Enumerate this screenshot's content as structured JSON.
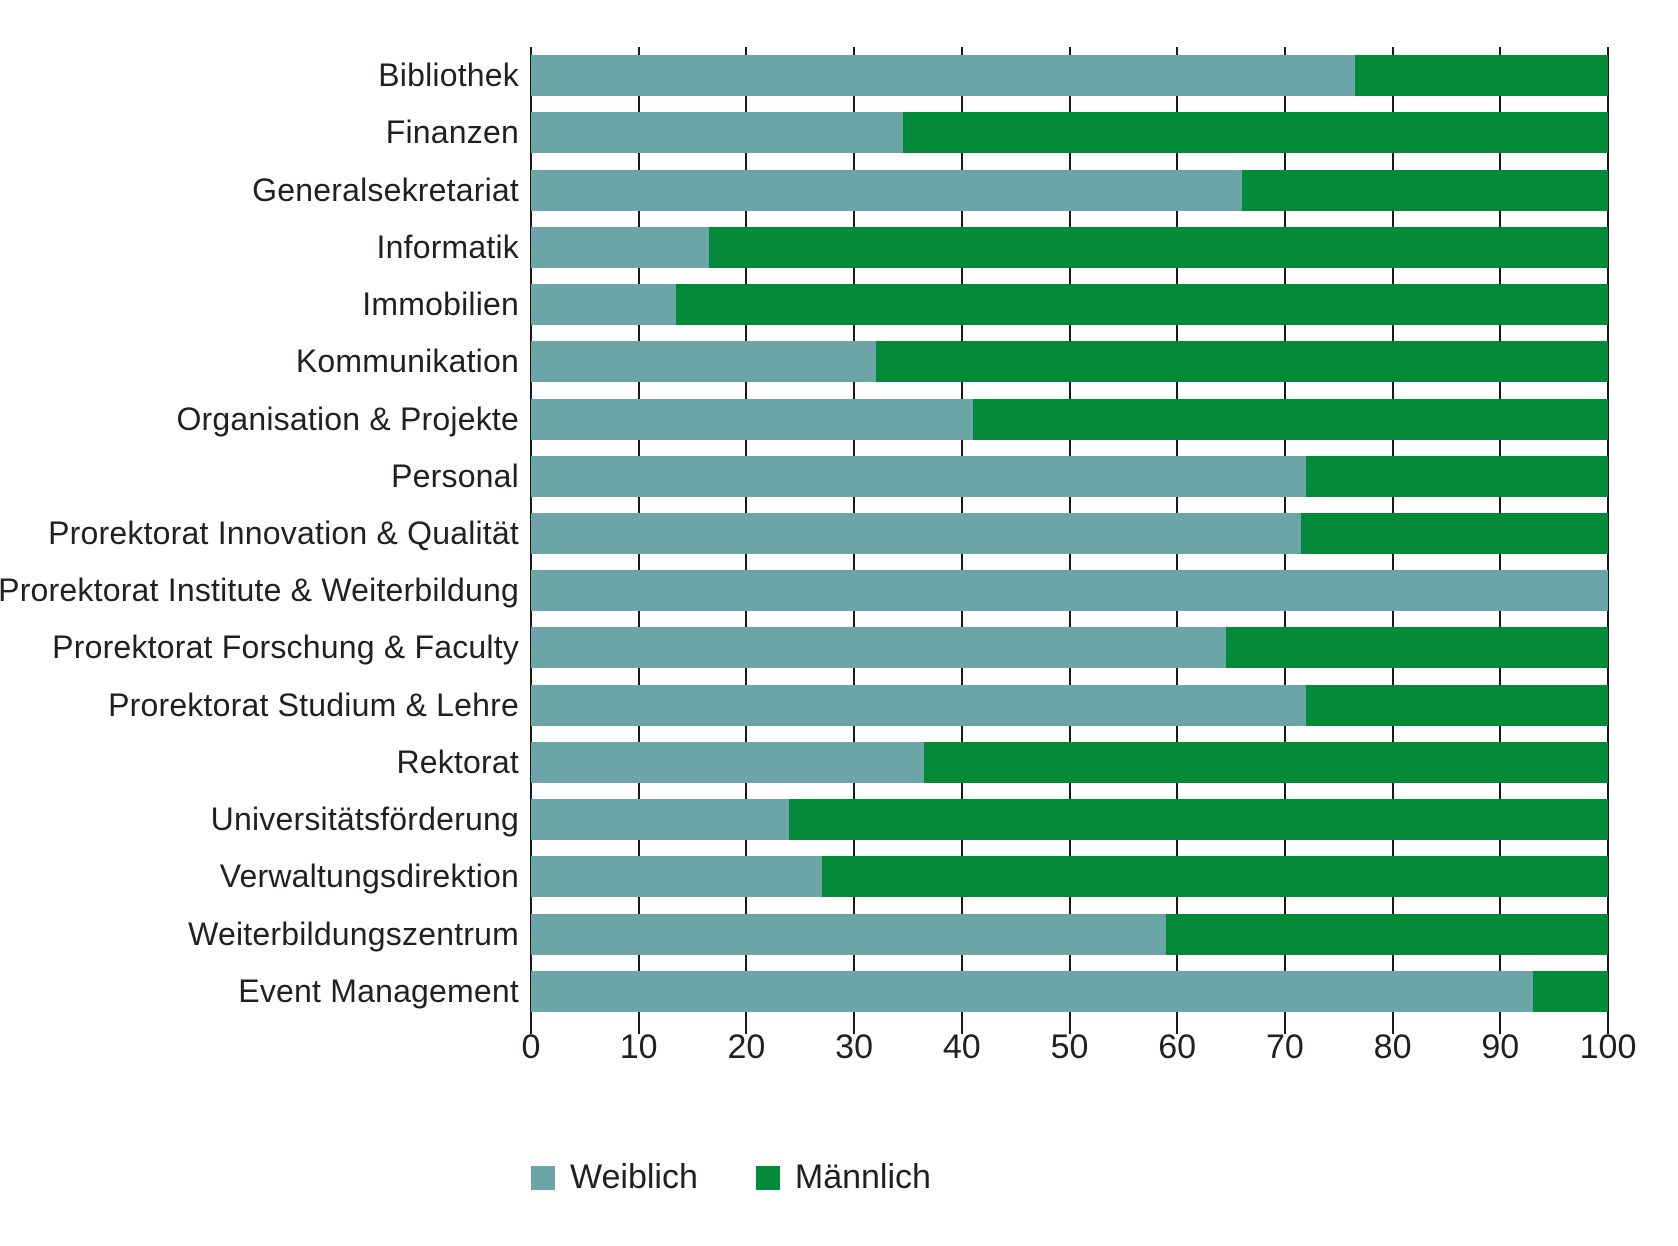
{
  "chart_data": {
    "type": "bar",
    "orientation": "horizontal",
    "stacked": true,
    "unit": "percent",
    "title": "",
    "xlabel": "",
    "ylabel": "",
    "xlim": [
      0,
      100
    ],
    "x_ticks": [
      0,
      10,
      20,
      30,
      40,
      50,
      60,
      70,
      80,
      90,
      100
    ],
    "grid": "vertical",
    "legend_position": "bottom-left",
    "categories": [
      "Bibliothek",
      "Finanzen",
      "Generalsekretariat",
      "Informatik",
      "Immobilien",
      "Kommunikation",
      "Organisation & Projekte",
      "Personal",
      "Prorektorat Innovation & Qualität",
      "Prorektorat Institute & Weiterbildung",
      "Prorektorat Forschung & Faculty",
      "Prorektorat Studium & Lehre",
      "Rektorat",
      "Universitätsförderung",
      "Verwaltungsdirektion",
      "Weiterbildungszentrum",
      "Event Management"
    ],
    "series": [
      {
        "name": "Weiblich",
        "color": "#6CA5A8",
        "values": [
          76.5,
          34.5,
          66,
          16.5,
          13.5,
          32,
          41,
          72,
          71.5,
          100,
          64.5,
          72,
          36.5,
          24,
          27,
          59,
          93
        ]
      },
      {
        "name": "Männlich",
        "color": "#028A38",
        "values": [
          23.5,
          65.5,
          34,
          83.5,
          86.5,
          68,
          59,
          28,
          28.5,
          0,
          35.5,
          28,
          63.5,
          76,
          73,
          41,
          7
        ]
      }
    ]
  },
  "colors": {
    "gridline": "#1a1a1a",
    "text": "#231f20",
    "background": "#ffffff"
  },
  "legend": {
    "items": [
      {
        "label": "Weiblich"
      },
      {
        "label": "Männlich"
      }
    ]
  }
}
